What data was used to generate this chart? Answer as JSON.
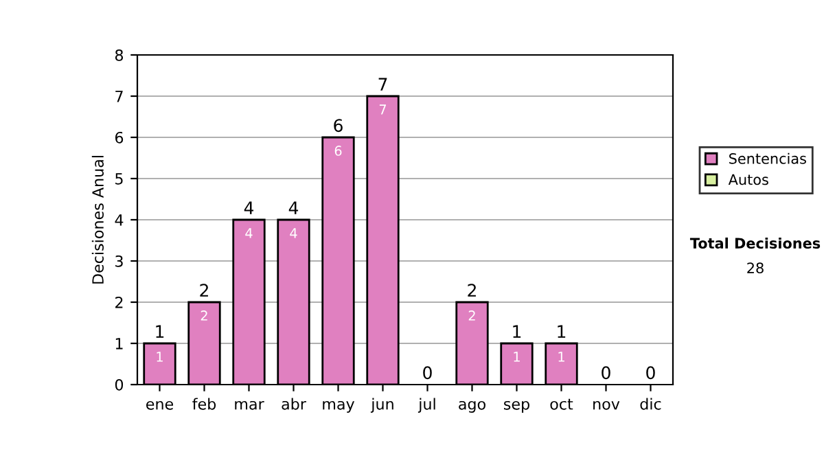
{
  "chart_data": {
    "type": "bar",
    "stacked": true,
    "ylabel": "Decisiones Anual",
    "categories": [
      "ene",
      "feb",
      "mar",
      "abr",
      "may",
      "jun",
      "jul",
      "ago",
      "sep",
      "oct",
      "nov",
      "dic"
    ],
    "series": [
      {
        "name": "Sentencias",
        "color": "#e080c0",
        "values": [
          1,
          2,
          4,
          4,
          6,
          7,
          0,
          2,
          1,
          1,
          0,
          0
        ],
        "value_labels": [
          "1",
          "2",
          "4",
          "4",
          "6",
          "7",
          null,
          "2",
          "1",
          "1",
          null,
          null
        ]
      },
      {
        "name": "Autos",
        "color": "#d8f0a0",
        "values": [
          0,
          0,
          0,
          0,
          0,
          0,
          0,
          0,
          0,
          0,
          0,
          0
        ]
      }
    ],
    "totals": [
      "1",
      "2",
      "4",
      "4",
      "6",
      "7",
      "0",
      "2",
      "1",
      "1",
      "0",
      "0"
    ],
    "ylim": [
      0,
      8
    ],
    "yticks": [
      0,
      1,
      2,
      3,
      4,
      5,
      6,
      7,
      8
    ],
    "grid": "y",
    "legend": "right",
    "annotations": [
      "Total Decisiones",
      "28"
    ]
  }
}
